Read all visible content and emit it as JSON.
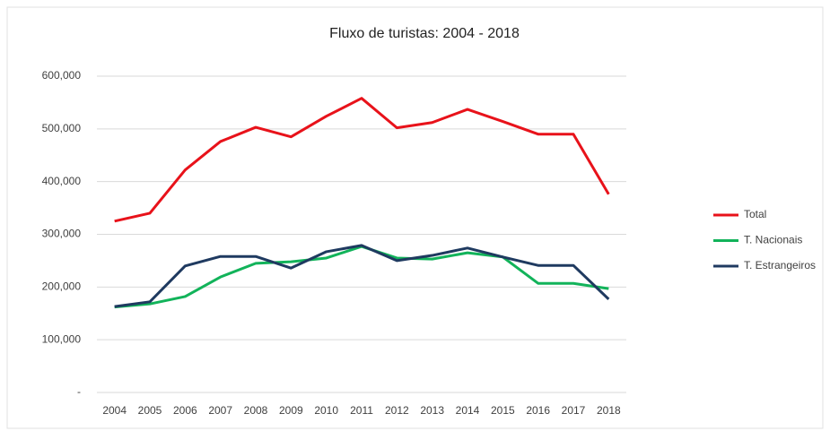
{
  "chart_data": {
    "type": "line",
    "title": "Fluxo de turistas: 2004 - 2018",
    "categories": [
      "2004",
      "2005",
      "2006",
      "2007",
      "2008",
      "2009",
      "2010",
      "2011",
      "2012",
      "2013",
      "2014",
      "2015",
      "2016",
      "2017",
      "2018"
    ],
    "series": [
      {
        "name": "Total",
        "color": "#e8121a",
        "values": [
          325000,
          340000,
          422000,
          476000,
          503000,
          485000,
          524000,
          558000,
          502000,
          512000,
          537000,
          514000,
          490000,
          490000,
          376000
        ]
      },
      {
        "name": "T. Nacionais",
        "color": "#12b35a",
        "values": [
          162000,
          168000,
          182000,
          219000,
          245000,
          248000,
          255000,
          277000,
          255000,
          253000,
          265000,
          257000,
          207000,
          207000,
          197000
        ]
      },
      {
        "name": "T. Estrangeiros",
        "color": "#1f3a60",
        "values": [
          163000,
          172000,
          240000,
          258000,
          258000,
          236000,
          267000,
          279000,
          250000,
          260000,
          274000,
          257000,
          241000,
          241000,
          177000
        ]
      }
    ],
    "ylim": [
      0,
      600000
    ],
    "yticks": [
      {
        "value": 0,
        "label": "-"
      },
      {
        "value": 100000,
        "label": "100,000"
      },
      {
        "value": 200000,
        "label": "200,000"
      },
      {
        "value": 300000,
        "label": "300,000"
      },
      {
        "value": 400000,
        "label": "400,000"
      },
      {
        "value": 500000,
        "label": "500,000"
      },
      {
        "value": 600000,
        "label": "600,000"
      }
    ],
    "grid": true,
    "legend": "right"
  }
}
